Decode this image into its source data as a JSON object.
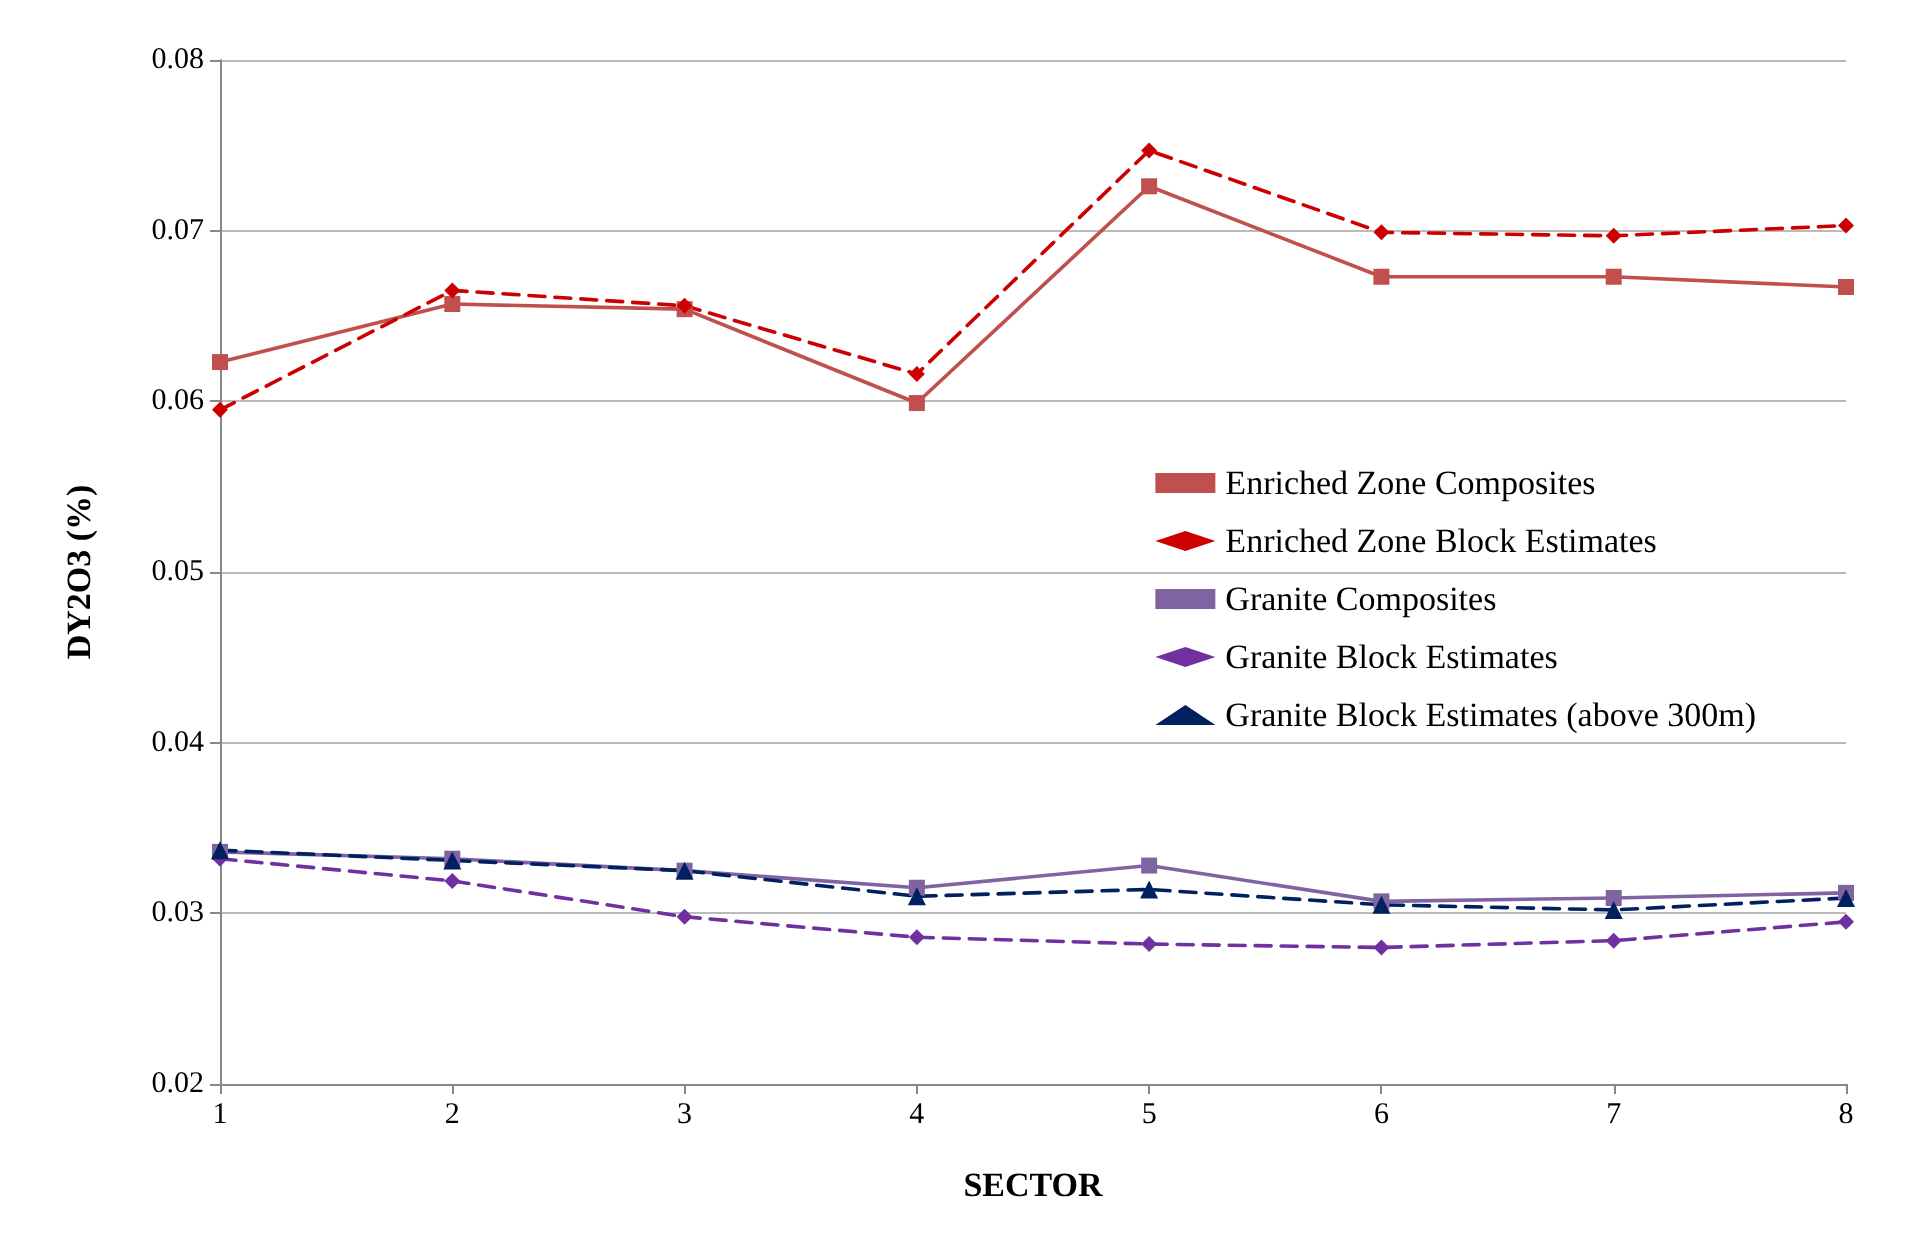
{
  "chart_data": {
    "type": "line",
    "xlabel": "SECTOR",
    "ylabel": "DY2O3 (%)",
    "categories": [
      "1",
      "2",
      "3",
      "4",
      "5",
      "6",
      "7",
      "8"
    ],
    "series": [
      {
        "name": "Enriched Zone Composites",
        "color": "#c0504d",
        "marker": "square",
        "line_style": "solid",
        "values": [
          0.0623,
          0.0657,
          0.0654,
          0.0599,
          0.0726,
          0.0673,
          0.0673,
          0.0667
        ]
      },
      {
        "name": "Enriched Zone Block Estimates",
        "color": "#cc0000",
        "marker": "diamond",
        "line_style": "dashed",
        "values": [
          0.0595,
          0.0665,
          0.0656,
          0.0616,
          0.0747,
          0.0699,
          0.0697,
          0.0703
        ]
      },
      {
        "name": "Granite Composites",
        "color": "#8064a2",
        "marker": "square",
        "line_style": "solid",
        "values": [
          0.0336,
          0.0332,
          0.0325,
          0.0315,
          0.0328,
          0.0307,
          0.0309,
          0.0312
        ]
      },
      {
        "name": "Granite Block Estimates",
        "color": "#7030a0",
        "marker": "diamond",
        "line_style": "dashed",
        "values": [
          0.0332,
          0.0319,
          0.0298,
          0.0286,
          0.0282,
          0.028,
          0.0284,
          0.0295
        ]
      },
      {
        "name": "Granite Block Estimates (above 300m)",
        "color": "#002060",
        "marker": "triangle",
        "line_style": "dashed",
        "values": [
          0.0337,
          0.0331,
          0.0325,
          0.031,
          0.0314,
          0.0305,
          0.0302,
          0.0309
        ]
      }
    ],
    "ylim": [
      0.02,
      0.08
    ],
    "yticks": [
      0.02,
      0.03,
      0.04,
      0.05,
      0.06,
      0.07,
      0.08
    ],
    "grid": "y",
    "legend": "right"
  }
}
